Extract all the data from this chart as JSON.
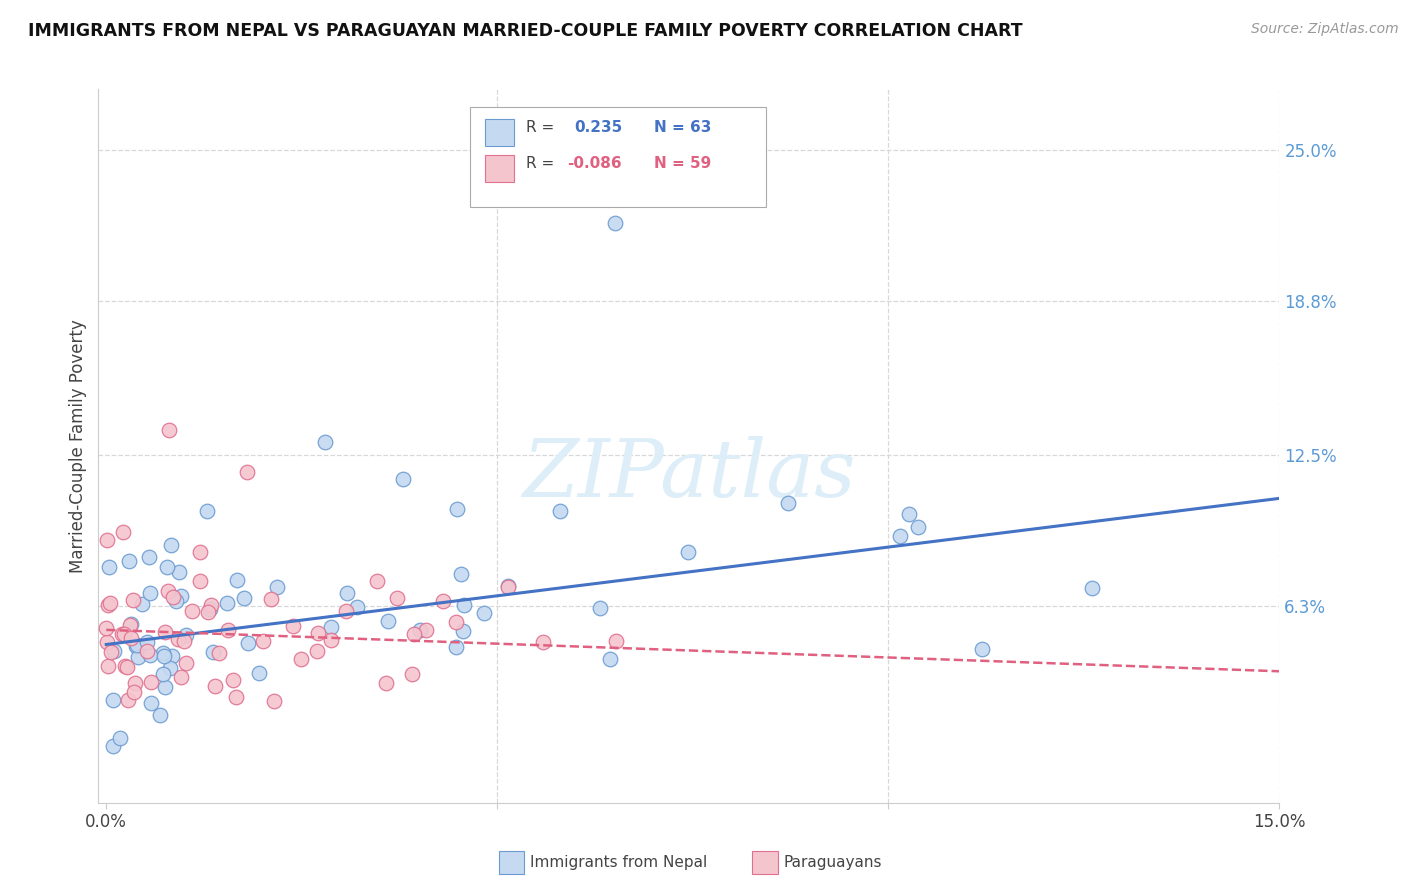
{
  "title": "IMMIGRANTS FROM NEPAL VS PARAGUAYAN MARRIED-COUPLE FAMILY POVERTY CORRELATION CHART",
  "source": "Source: ZipAtlas.com",
  "ylabel": "Married-Couple Family Poverty",
  "xlim": [
    0.0,
    0.15
  ],
  "ylim": [
    -0.018,
    0.275
  ],
  "ytick_values": [
    0.063,
    0.125,
    0.188,
    0.25
  ],
  "ytick_labels": [
    "6.3%",
    "12.5%",
    "18.8%",
    "25.0%"
  ],
  "xtick_values": [
    0.0,
    0.05,
    0.1,
    0.15
  ],
  "xtick_labels": [
    "0.0%",
    "",
    "",
    "15.0%"
  ],
  "legend_blue_r": "0.235",
  "legend_blue_n": "63",
  "legend_pink_r": "-0.086",
  "legend_pink_n": "59",
  "legend_label_blue": "Immigrants from Nepal",
  "legend_label_pink": "Paraguayans",
  "blue_scatter_face": "#c5d9f0",
  "blue_scatter_edge": "#6b9bd2",
  "pink_scatter_face": "#f5c5ce",
  "pink_scatter_edge": "#e07090",
  "blue_line_color": "#4472c4",
  "pink_line_color": "#e06080",
  "grid_color": "#d8d8d8",
  "right_axis_color": "#5b9bd5",
  "nepal_trend_x0": 0.0,
  "nepal_trend_y0": 0.047,
  "nepal_trend_x1": 0.15,
  "nepal_trend_y1": 0.107,
  "para_trend_x0": 0.0,
  "para_trend_y0": 0.053,
  "para_trend_x1": 0.15,
  "para_trend_y1": 0.036
}
